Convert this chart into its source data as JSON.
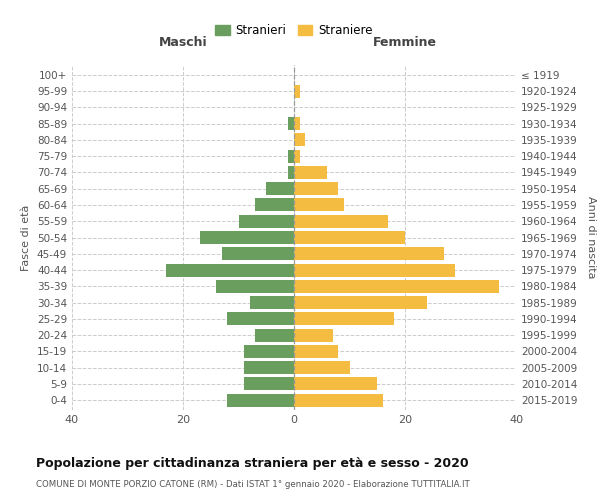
{
  "age_groups": [
    "100+",
    "95-99",
    "90-94",
    "85-89",
    "80-84",
    "75-79",
    "70-74",
    "65-69",
    "60-64",
    "55-59",
    "50-54",
    "45-49",
    "40-44",
    "35-39",
    "30-34",
    "25-29",
    "20-24",
    "15-19",
    "10-14",
    "5-9",
    "0-4"
  ],
  "birth_years": [
    "≤ 1919",
    "1920-1924",
    "1925-1929",
    "1930-1934",
    "1935-1939",
    "1940-1944",
    "1945-1949",
    "1950-1954",
    "1955-1959",
    "1960-1964",
    "1965-1969",
    "1970-1974",
    "1975-1979",
    "1980-1984",
    "1985-1989",
    "1990-1994",
    "1995-1999",
    "2000-2004",
    "2005-2009",
    "2010-2014",
    "2015-2019"
  ],
  "maschi": [
    0,
    0,
    0,
    1,
    0,
    1,
    1,
    5,
    7,
    10,
    17,
    13,
    23,
    14,
    8,
    12,
    7,
    9,
    9,
    9,
    12
  ],
  "femmine": [
    0,
    1,
    0,
    1,
    2,
    1,
    6,
    8,
    9,
    17,
    20,
    27,
    29,
    37,
    24,
    18,
    7,
    8,
    10,
    15,
    16
  ],
  "male_color": "#6a9e5e",
  "female_color": "#f5bc42",
  "background_color": "#ffffff",
  "grid_color": "#cccccc",
  "title": "Popolazione per cittadinanza straniera per età e sesso - 2020",
  "subtitle": "COMUNE DI MONTE PORZIO CATONE (RM) - Dati ISTAT 1° gennaio 2020 - Elaborazione TUTTITALIA.IT",
  "xlabel_left": "Maschi",
  "xlabel_right": "Femmine",
  "ylabel_left": "Fasce di età",
  "ylabel_right": "Anni di nascita",
  "legend_male": "Stranieri",
  "legend_female": "Straniere",
  "xlim": 40,
  "bar_height": 0.8
}
